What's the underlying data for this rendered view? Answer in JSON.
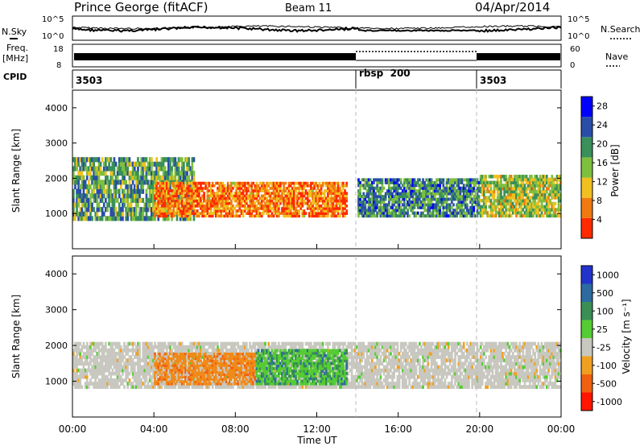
{
  "header": {
    "station": "Prince George (fitACF)",
    "beam": "Beam 11",
    "date": "04/Apr/2014"
  },
  "summary": {
    "nsky_label": "N.Sky",
    "nsearch_label": "N.Search",
    "noise_ticks": [
      "10^5",
      "10^0"
    ],
    "freq_label_1": "Freq.",
    "freq_label_2": "[MHz]",
    "freq_ticks": [
      "18",
      "8"
    ],
    "nave_label": "Nave",
    "nave_ticks": [
      "60",
      "0"
    ],
    "cpid_label": "CPID",
    "cpid_segments": [
      {
        "start_h": 0,
        "end_h": 14,
        "label": "3503"
      },
      {
        "start_h": 14,
        "end_h": 20,
        "label": "rbsp  200"
      },
      {
        "start_h": 20,
        "end_h": 24,
        "label": "3503"
      }
    ]
  },
  "chart_data": [
    {
      "type": "heatmap",
      "name": "power",
      "ylabel": "Slant Range [km]",
      "ylim": [
        0,
        4500
      ],
      "yticks": [
        "1000",
        "2000",
        "3000",
        "4000"
      ],
      "xlabel": "Time UT",
      "xlim": [
        0,
        24
      ],
      "xticks": [
        "00:00",
        "04:00",
        "08:00",
        "12:00",
        "16:00",
        "20:00",
        "00:00"
      ],
      "colorbar": {
        "label": "Power [dB]",
        "ticks": [
          "4",
          "8",
          "12",
          "16",
          "20",
          "24",
          "28"
        ],
        "range": [
          0,
          30
        ],
        "colors": [
          "#0000ff",
          "#2a4ea8",
          "#3a8f5a",
          "#7fbf3f",
          "#f0c020",
          "#f07a10",
          "#ff2a00"
        ]
      },
      "regions": [
        {
          "t0": 0.0,
          "t1": 6.0,
          "r0": 800,
          "r1": 2600,
          "level": 12
        },
        {
          "t0": 4.0,
          "t1": 13.5,
          "r0": 900,
          "r1": 1900,
          "level": 24
        },
        {
          "t0": 14.0,
          "t1": 20.0,
          "r0": 900,
          "r1": 2000,
          "level": 10
        },
        {
          "t0": 20.0,
          "t1": 24.0,
          "r0": 900,
          "r1": 2100,
          "level": 16
        }
      ]
    },
    {
      "type": "heatmap",
      "name": "velocity",
      "ylabel": "Slant Range [km]",
      "ylim": [
        0,
        4500
      ],
      "yticks": [
        "1000",
        "2000",
        "3000",
        "4000"
      ],
      "xlabel": "Time UT",
      "xlim": [
        0,
        24
      ],
      "xticks": [
        "00:00",
        "04:00",
        "08:00",
        "12:00",
        "16:00",
        "20:00",
        "00:00"
      ],
      "colorbar": {
        "label": "Velocity [m s⁻¹]",
        "ticks": [
          "1000",
          "500",
          "100",
          "25",
          "-25",
          "-100",
          "-500",
          "-1000"
        ],
        "colors": [
          "#2233cc",
          "#2c6aa0",
          "#3b8f55",
          "#55cc33",
          "#c8c8c0",
          "#f0a020",
          "#f06010",
          "#ff1500"
        ]
      },
      "regions": [
        {
          "t0": 0.0,
          "t1": 24.0,
          "r0": 800,
          "r1": 2100,
          "level": 0
        },
        {
          "t0": 4.0,
          "t1": 9.0,
          "r0": 900,
          "r1": 1800,
          "level": -300
        },
        {
          "t0": 9.0,
          "t1": 13.5,
          "r0": 900,
          "r1": 1900,
          "level": 150
        }
      ]
    }
  ]
}
